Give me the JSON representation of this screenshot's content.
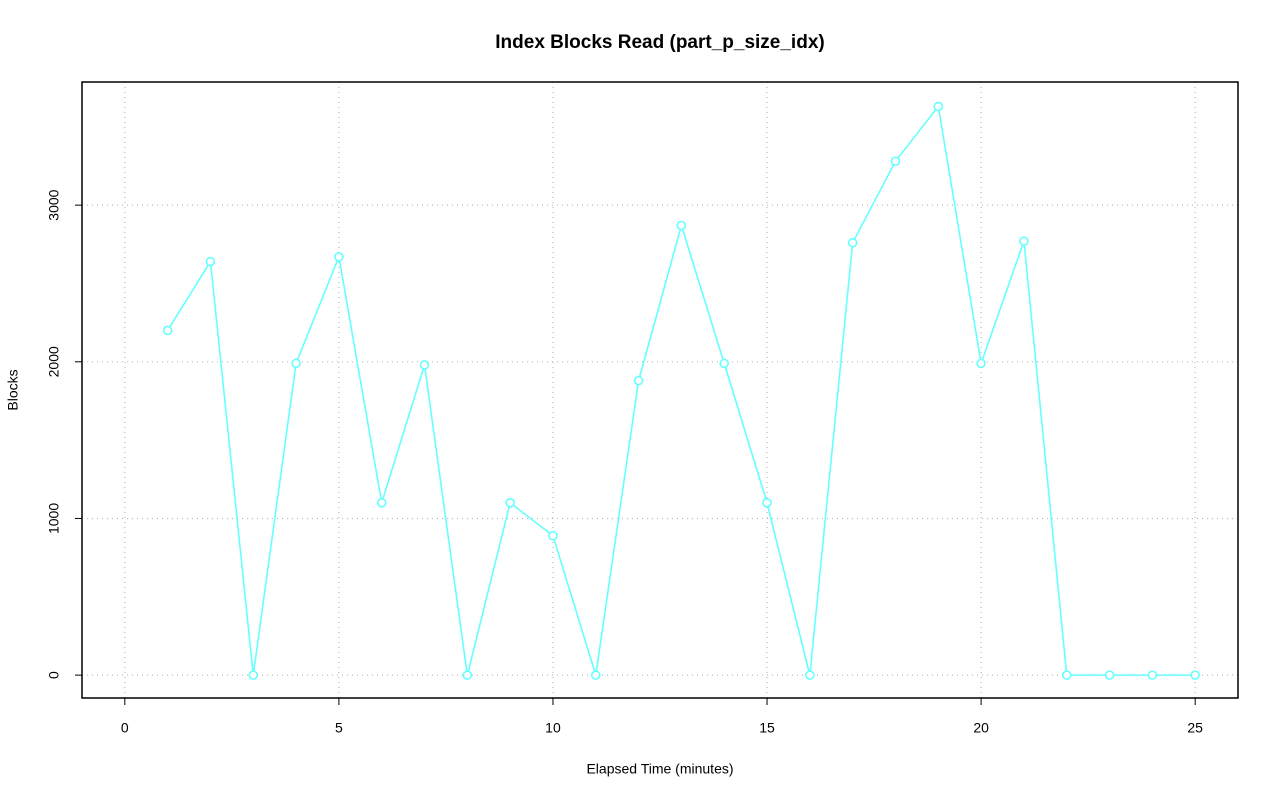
{
  "chart_data": {
    "type": "line",
    "title": "Index Blocks Read (part_p_size_idx)",
    "x_label": "Elapsed Time (minutes)",
    "y_label": "Blocks",
    "x": [
      1,
      2,
      3,
      4,
      5,
      6,
      7,
      8,
      9,
      10,
      11,
      12,
      13,
      14,
      15,
      16,
      17,
      18,
      19,
      20,
      21,
      22,
      23,
      24,
      25
    ],
    "series": [
      {
        "name": "part_p_size_idx",
        "color": "#66ffff",
        "values": [
          2200,
          2640,
          0,
          1990,
          2670,
          1100,
          1980,
          0,
          1100,
          890,
          0,
          1880,
          2870,
          1990,
          1100,
          0,
          2760,
          3280,
          3630,
          1990,
          2770,
          0,
          0,
          0,
          0
        ]
      }
    ],
    "xlim": [
      -1,
      26
    ],
    "xticks": [
      0,
      5,
      10,
      15,
      20,
      25
    ],
    "ylim": [
      -146,
      3786
    ],
    "yticks": [
      0,
      1000,
      2000,
      3000
    ],
    "grid": true
  }
}
